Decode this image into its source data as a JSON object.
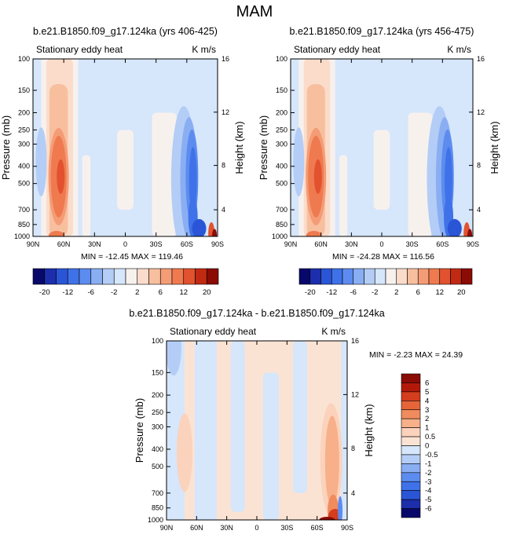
{
  "page_title": "MAM",
  "chart_data": [
    {
      "type": "heatmap",
      "title": "b.e21.B1850.f09_g17.124ka (yrs 406-425)",
      "subtitle_left": "Stationary eddy heat",
      "subtitle_right": "K m/s",
      "xlabel": "",
      "ylabel": "Pressure (mb)",
      "ylabel_right": "Height (km)",
      "x_ticks": [
        "90N",
        "60N",
        "30N",
        "0",
        "30S",
        "60S",
        "90S"
      ],
      "y_ticks": [
        "100",
        "150",
        "200",
        "250",
        "300",
        "400",
        "500",
        "700",
        "850",
        "1000"
      ],
      "y_right_ticks": [
        "16",
        "12",
        "8",
        "4"
      ],
      "stats": "MIN = -12.45   MAX = 119.46",
      "min": -12.45,
      "max": 119.46,
      "colorbar": {
        "orientation": "horizontal",
        "labels": [
          "-20",
          "-12",
          "-6",
          "-2",
          "2",
          "6",
          "12",
          "20"
        ],
        "levels": [
          -20,
          -16,
          -12,
          -8,
          -6,
          -4,
          -2,
          -1,
          1,
          2,
          4,
          6,
          8,
          12,
          16,
          20
        ]
      },
      "features": [
        {
          "lat": 60,
          "p": 400,
          "value": 20,
          "desc": "positive lobe"
        },
        {
          "lat": -80,
          "p": 500,
          "value": -12,
          "desc": "negative lobe"
        },
        {
          "lat": 80,
          "p": 350,
          "value": -2,
          "desc": "weak negative"
        }
      ]
    },
    {
      "type": "heatmap",
      "title": "b.e21.B1850.f09_g17.124ka (yrs 456-475)",
      "subtitle_left": "Stationary eddy heat",
      "subtitle_right": "K m/s",
      "xlabel": "",
      "ylabel": "Pressure (mb)",
      "ylabel_right": "Height (km)",
      "x_ticks": [
        "90N",
        "60N",
        "30N",
        "0",
        "30S",
        "60S",
        "90S"
      ],
      "y_ticks": [
        "100",
        "150",
        "200",
        "250",
        "300",
        "400",
        "500",
        "700",
        "850",
        "1000"
      ],
      "y_right_ticks": [
        "16",
        "12",
        "8",
        "4"
      ],
      "stats": "MIN = -24.28   MAX = 116.56",
      "min": -24.28,
      "max": 116.56,
      "colorbar": {
        "orientation": "horizontal",
        "labels": [
          "-20",
          "-12",
          "-6",
          "-2",
          "2",
          "6",
          "12",
          "20"
        ],
        "levels": [
          -20,
          -16,
          -12,
          -8,
          -6,
          -4,
          -2,
          -1,
          1,
          2,
          4,
          6,
          8,
          12,
          16,
          20
        ]
      },
      "features": [
        {
          "lat": 60,
          "p": 400,
          "value": 20,
          "desc": "positive lobe"
        },
        {
          "lat": -80,
          "p": 500,
          "value": -12,
          "desc": "negative lobe"
        },
        {
          "lat": 80,
          "p": 350,
          "value": -2,
          "desc": "weak negative"
        }
      ]
    },
    {
      "type": "heatmap",
      "title": "b.e21.B1850.f09_g17.124ka - b.e21.B1850.f09_g17.124ka",
      "subtitle_left": "Stationary eddy heat",
      "subtitle_right": "K m/s",
      "xlabel": "",
      "ylabel": "Pressure (mb)",
      "ylabel_right": "Height (km)",
      "x_ticks": [
        "90N",
        "60N",
        "30N",
        "0",
        "30S",
        "60S",
        "90S"
      ],
      "y_ticks": [
        "100",
        "150",
        "200",
        "250",
        "300",
        "400",
        "500",
        "700",
        "850",
        "1000"
      ],
      "y_right_ticks": [
        "16",
        "12",
        "8",
        "4"
      ],
      "stats": "MIN =  -2.23   MAX =  24.39",
      "min": -2.23,
      "max": 24.39,
      "colorbar": {
        "orientation": "vertical",
        "labels": [
          "6",
          "5",
          "4",
          "3",
          "2",
          "1",
          "0.5",
          "0",
          "-0.5",
          "-1",
          "-2",
          "-3",
          "-4",
          "-5",
          "-6"
        ],
        "levels": [
          -6,
          -5,
          -4,
          -3,
          -2,
          -1,
          -0.5,
          0,
          0.5,
          1,
          2,
          3,
          4,
          5,
          6
        ]
      },
      "features": [
        {
          "lat": 70,
          "p": 400,
          "value": 0.5,
          "desc": "weak positive"
        },
        {
          "lat": -75,
          "p": 450,
          "value": 2,
          "desc": "positive lobe"
        },
        {
          "lat": -75,
          "p": 900,
          "value": 6,
          "desc": "surface maximum"
        }
      ]
    }
  ],
  "colors": {
    "sym_scale": [
      "#08086b",
      "#1c2eab",
      "#2a55d6",
      "#3f72e8",
      "#5d8cf0",
      "#8aaef2",
      "#b3cdf6",
      "#d6e6fb",
      "#f7f1ee",
      "#fbdccb",
      "#f8bf9f",
      "#f49c76",
      "#ef7a50",
      "#e2522e",
      "#c12a12",
      "#8b0b05"
    ],
    "diff_scale": [
      "#08086b",
      "#1c2eab",
      "#2a55d6",
      "#3f72e8",
      "#5d8cf0",
      "#8aaef2",
      "#b3cdf6",
      "#d6e6fb",
      "#fbe3d4",
      "#fbd2bc",
      "#f7b08a",
      "#f08b5e",
      "#e6643a",
      "#d43d1d",
      "#b3190a",
      "#8b0b05"
    ]
  }
}
